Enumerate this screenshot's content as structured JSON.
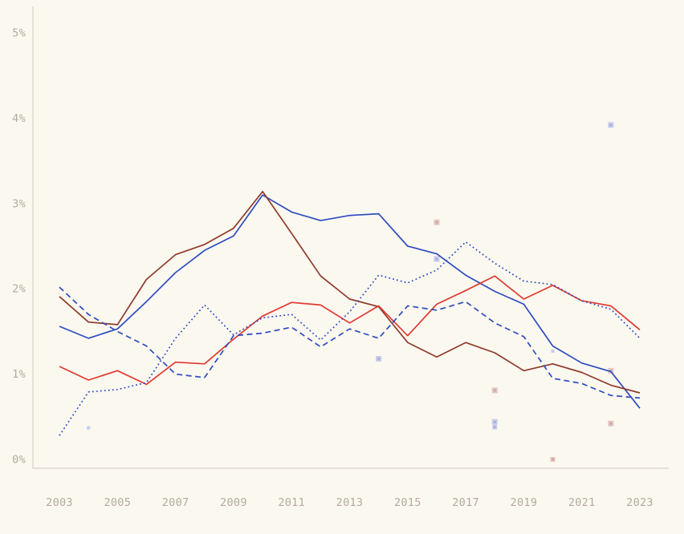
{
  "page": {
    "background_color": "#fbf8f0",
    "title": ""
  },
  "axis": {
    "label_color": "#b5aa9c",
    "line_color": "#dad2c4",
    "y_ticks": [
      {
        "label": "5%",
        "value": 5
      },
      {
        "label": "4%",
        "value": 4
      },
      {
        "label": "3%",
        "value": 3
      },
      {
        "label": "2%",
        "value": 2
      },
      {
        "label": "1%",
        "value": 1
      },
      {
        "label": "0%",
        "value": 0
      }
    ],
    "x_ticks": [
      "2003",
      "2005",
      "2007",
      "2009",
      "2011",
      "2013",
      "2015",
      "2017",
      "2019",
      "2021",
      "2023"
    ]
  },
  "marker_palette": {
    "periwinkle": {
      "fill": "#c7cbe9",
      "center": "#9fa8d8"
    },
    "pink": {
      "fill": "#e2c4c0",
      "center": "#c79d98"
    }
  },
  "chart_data": {
    "type": "line",
    "x": [
      2003,
      2004,
      2005,
      2006,
      2007,
      2008,
      2009,
      2010,
      2011,
      2012,
      2013,
      2014,
      2015,
      2016,
      2017,
      2018,
      2019,
      2020,
      2021,
      2022,
      2023
    ],
    "xlim": [
      2003,
      2023
    ],
    "ylim": [
      0,
      5
    ],
    "title": "",
    "xlabel": "",
    "ylabel": "",
    "grid": false,
    "legend": false,
    "series": [
      {
        "name": "blue-solid",
        "color": "#2e4cc0",
        "style": "solid",
        "width": 1.7,
        "values": [
          1.56,
          1.42,
          1.53,
          1.85,
          2.19,
          2.45,
          2.62,
          3.1,
          2.9,
          2.8,
          2.86,
          2.88,
          2.5,
          2.41,
          2.16,
          1.97,
          1.82,
          1.33,
          1.13,
          1.03,
          0.6
        ]
      },
      {
        "name": "maroon-solid",
        "color": "#8e3b2a",
        "style": "solid",
        "width": 1.7,
        "values": [
          1.91,
          1.61,
          1.58,
          2.11,
          2.4,
          2.52,
          2.71,
          3.14,
          2.65,
          2.15,
          1.88,
          1.79,
          1.37,
          1.2,
          1.37,
          1.25,
          1.04,
          1.12,
          1.02,
          0.87,
          0.78
        ]
      },
      {
        "name": "red-solid",
        "color": "#e03a30",
        "style": "solid",
        "width": 1.7,
        "values": [
          1.09,
          0.93,
          1.04,
          0.88,
          1.14,
          1.12,
          1.41,
          1.68,
          1.84,
          1.81,
          1.6,
          1.8,
          1.45,
          1.82,
          1.98,
          2.15,
          1.88,
          2.04,
          1.86,
          1.8,
          1.52
        ]
      },
      {
        "name": "blue-dashed",
        "color": "#2e4cc0",
        "style": "dashed",
        "width": 1.7,
        "values": [
          2.02,
          1.7,
          1.5,
          1.33,
          1.0,
          0.96,
          1.45,
          1.48,
          1.55,
          1.32,
          1.53,
          1.42,
          1.8,
          1.75,
          1.85,
          1.6,
          1.44,
          0.95,
          0.89,
          0.75,
          0.72
        ]
      },
      {
        "name": "blue-dotted",
        "color": "#2e4cc0",
        "style": "dotted",
        "width": 1.7,
        "values": [
          0.28,
          0.79,
          0.82,
          0.9,
          1.42,
          1.81,
          1.46,
          1.66,
          1.7,
          1.4,
          1.73,
          2.16,
          2.07,
          2.22,
          2.55,
          2.3,
          2.09,
          2.05,
          1.86,
          1.76,
          1.42
        ]
      }
    ],
    "markers": [
      {
        "year": 2004,
        "value": 0.37,
        "color": "periwinkle",
        "size": 4
      },
      {
        "year": 2014,
        "value": 1.18,
        "color": "periwinkle",
        "size": 7
      },
      {
        "year": 2016,
        "value": 2.35,
        "color": "periwinkle",
        "size": 7
      },
      {
        "year": 2016,
        "value": 2.78,
        "color": "pink",
        "size": 7
      },
      {
        "year": 2018,
        "value": 0.44,
        "color": "periwinkle",
        "size": 7
      },
      {
        "year": 2018,
        "value": 0.38,
        "color": "periwinkle",
        "size": 6
      },
      {
        "year": 2018,
        "value": 0.81,
        "color": "pink",
        "size": 7
      },
      {
        "year": 2020,
        "value": 1.27,
        "color": "periwinkle",
        "size": 4
      },
      {
        "year": 2020,
        "value": 0.0,
        "color": "pink",
        "size": 6
      },
      {
        "year": 2022,
        "value": 3.92,
        "color": "periwinkle",
        "size": 7
      },
      {
        "year": 2022,
        "value": 1.04,
        "color": "pink",
        "size": 7
      },
      {
        "year": 2022,
        "value": 0.42,
        "color": "pink",
        "size": 7
      }
    ]
  },
  "layout_hint": {
    "note": "lines start at first year, no legend, no gridlines, L-shaped axis"
  }
}
